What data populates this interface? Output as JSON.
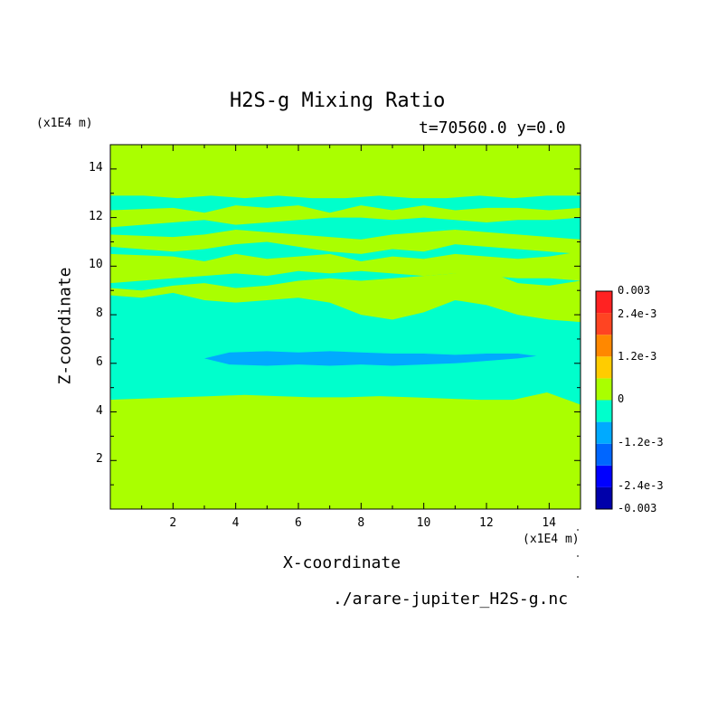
{
  "chart_data": {
    "type": "heatmap",
    "title": "H2S-g Mixing Ratio",
    "subtitle": "t=70560.0 y=0.0",
    "xlabel": "X-coordinate",
    "ylabel": "Z-coordinate",
    "x_unit": "(x1E4 m)",
    "z_unit": "(x1E4 m)",
    "xlim": [
      0,
      15
    ],
    "ylim": [
      0,
      15
    ],
    "x_ticks": [
      "2",
      "4",
      "6",
      "8",
      "10",
      "12",
      "14"
    ],
    "y_ticks": [
      "2",
      "4",
      "6",
      "8",
      "10",
      "12",
      "14"
    ],
    "source": "./arare-jupiter_H2S-g.nc",
    "colorbar": {
      "labels": [
        "0.003",
        "2.4e-3",
        "1.2e-3",
        "0",
        "-1.2e-3",
        "-2.4e-3",
        "-0.003"
      ],
      "levels": [
        -0.003,
        -0.0024,
        -0.0018,
        -0.0012,
        -0.0006,
        0,
        0.0006,
        0.0012,
        0.0018,
        0.0024,
        0.003
      ],
      "colors": [
        "#0000aa",
        "#0000ff",
        "#0066ff",
        "#00aaff",
        "#00ffcc",
        "#aaff00",
        "#ffcc00",
        "#ff8800",
        "#ff4422",
        "#ff2222"
      ]
    },
    "colors": {
      "positive_small": "#aaff00",
      "negative_small": "#00ffcc",
      "negative_medium": "#00aaff"
    },
    "regions": [
      {
        "level": "negative_small",
        "z_bottom": [
          4.5,
          4.55,
          4.6,
          4.65,
          4.7,
          4.65,
          4.6,
          4.6,
          4.65,
          4.6,
          4.55,
          4.5,
          4.5,
          4.8,
          4.3
        ],
        "z_top": [
          12.9,
          12.9,
          12.8,
          12.9,
          12.8,
          12.9,
          12.8,
          12.8,
          12.9,
          12.8,
          12.8,
          12.9,
          12.8,
          12.9,
          12.9
        ]
      }
    ],
    "bands": [
      {
        "level": "positive_small",
        "x": [
          0,
          2,
          3,
          4,
          5,
          6,
          7,
          8,
          9,
          10,
          11,
          12,
          13,
          14,
          15
        ],
        "z_bottom": [
          11.6,
          11.8,
          11.9,
          11.7,
          11.8,
          11.9,
          12.0,
          12.0,
          11.9,
          12.0,
          11.9,
          11.8,
          11.9,
          11.9,
          12.0
        ],
        "z_top": [
          12.3,
          12.4,
          12.2,
          12.5,
          12.4,
          12.5,
          12.2,
          12.5,
          12.3,
          12.5,
          12.3,
          12.4,
          12.4,
          12.3,
          12.4
        ]
      },
      {
        "level": "positive_small",
        "x": [
          0,
          2,
          3,
          4,
          5,
          6,
          7,
          8,
          9,
          10,
          11,
          12,
          13,
          14,
          15
        ],
        "z_bottom": [
          10.8,
          10.6,
          10.7,
          10.9,
          11.0,
          10.8,
          10.6,
          10.5,
          10.7,
          10.6,
          10.9,
          10.8,
          10.7,
          10.6,
          10.5
        ],
        "z_top": [
          11.3,
          11.2,
          11.3,
          11.5,
          11.4,
          11.3,
          11.2,
          11.1,
          11.3,
          11.4,
          11.5,
          11.4,
          11.3,
          11.2,
          11.1
        ]
      },
      {
        "level": "positive_small",
        "x": [
          0,
          2,
          3,
          4,
          5,
          6,
          7,
          8,
          9,
          10,
          11,
          12,
          13,
          14,
          15
        ],
        "z_bottom": [
          9.3,
          9.5,
          9.6,
          9.7,
          9.6,
          9.8,
          9.7,
          9.8,
          9.7,
          9.6,
          9.7,
          9.6,
          9.5,
          9.5,
          9.4
        ],
        "z_top": [
          10.5,
          10.4,
          10.2,
          10.5,
          10.3,
          10.4,
          10.5,
          10.2,
          10.4,
          10.3,
          10.5,
          10.4,
          10.3,
          10.4,
          10.6
        ]
      },
      {
        "level": "positive_small",
        "x": [
          0,
          1,
          2,
          3,
          4,
          5,
          6,
          7,
          8,
          9,
          10,
          11,
          12,
          13,
          14,
          15
        ],
        "z_bottom": [
          8.8,
          8.7,
          8.9,
          8.6,
          8.5,
          8.6,
          8.7,
          8.5,
          8.0,
          7.8,
          8.1,
          8.6,
          8.4,
          8.0,
          7.8,
          7.7
        ],
        "z_top": [
          9.1,
          9.0,
          9.2,
          9.3,
          9.1,
          9.2,
          9.4,
          9.5,
          9.4,
          9.5,
          9.6,
          9.7,
          9.8,
          9.3,
          9.2,
          9.4
        ]
      }
    ],
    "minimum_band": {
      "level": "negative_medium",
      "x": [
        3.0,
        3.8,
        5.0,
        6.0,
        7.0,
        8.0,
        9.0,
        10.0,
        11.0,
        12.0,
        13.0,
        13.6
      ],
      "z_bottom": [
        6.2,
        5.95,
        5.9,
        5.95,
        5.9,
        5.95,
        5.9,
        5.95,
        6.0,
        6.1,
        6.2,
        6.3
      ],
      "z_top": [
        6.2,
        6.45,
        6.5,
        6.45,
        6.5,
        6.45,
        6.4,
        6.4,
        6.35,
        6.4,
        6.4,
        6.3
      ]
    }
  }
}
